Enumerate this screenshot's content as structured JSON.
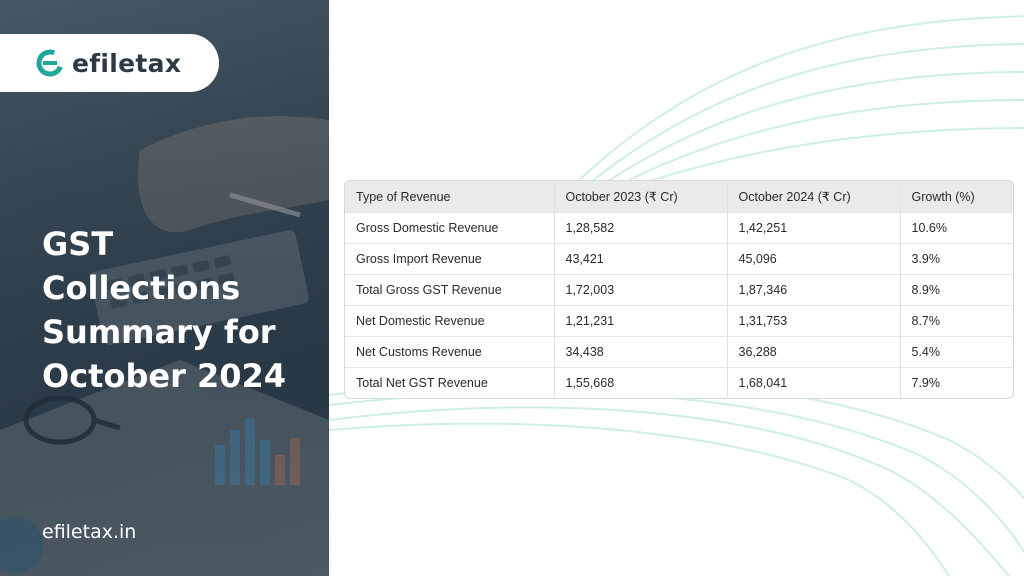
{
  "brand": {
    "logo_text": "efiletax",
    "site_url": "efiletax.in",
    "accent_color": "#1fa59a"
  },
  "headline": {
    "lines": [
      "GST",
      "Collections",
      "Summary for",
      "October 2024"
    ]
  },
  "table": {
    "headers": [
      "Type of Revenue",
      "October 2023 (₹ Cr)",
      "October 2024 (₹ Cr)",
      "Growth (%)"
    ],
    "rows": [
      [
        "Gross Domestic Revenue",
        "1,28,582",
        "1,42,251",
        "10.6%"
      ],
      [
        "Gross Import Revenue",
        "43,421",
        "45,096",
        "3.9%"
      ],
      [
        "Total Gross GST Revenue",
        "1,72,003",
        "1,87,346",
        "8.9%"
      ],
      [
        "Net Domestic Revenue",
        "1,21,231",
        "1,31,753",
        "8.7%"
      ],
      [
        "Net Customs Revenue",
        "34,438",
        "36,288",
        "5.4%"
      ],
      [
        "Total Net GST Revenue",
        "1,55,668",
        "1,68,041",
        "7.9%"
      ]
    ]
  },
  "decor": {
    "wave_color": "#cfeee6",
    "photo_description_icon": "desk-calculator-chart-photo"
  }
}
